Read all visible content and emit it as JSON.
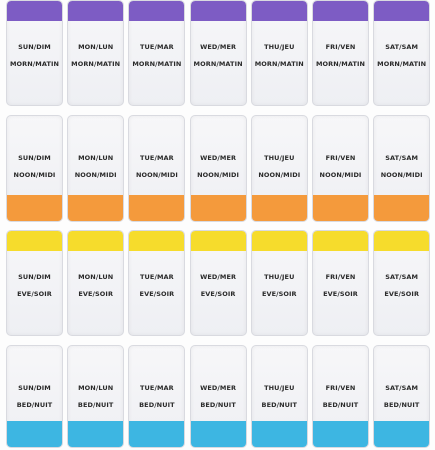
{
  "days": [
    "SUN/DIM",
    "MON/LUN",
    "TUE/MAR",
    "WED/MER",
    "THU/JEU",
    "FRI/VEN",
    "SAT/SAM"
  ],
  "times": [
    "MORN/MATIN",
    "NOON/MIDI",
    "EVE/SOIR",
    "BED/NUIT"
  ]
}
